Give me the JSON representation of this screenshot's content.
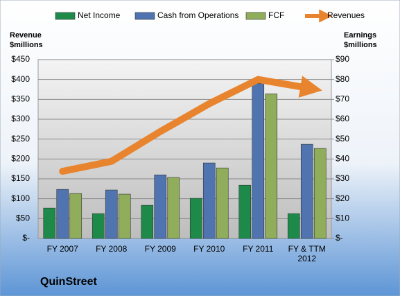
{
  "chart_data": {
    "type": "bar",
    "title": "QuinStreet",
    "y_label": "Revenue $millions",
    "y2_label": "Earnings $millions",
    "categories": [
      "FY 2007",
      "FY 2008",
      "FY 2009",
      "FY 2010",
      "FY 2011",
      "FY & TTM 2012"
    ],
    "series": [
      {
        "name": "Net Income",
        "color": "#1e8a4a",
        "axis": "y2",
        "type": "bar",
        "values": [
          15.3,
          12.5,
          16.7,
          20.2,
          26.8,
          12.5
        ]
      },
      {
        "name": "Cash from Operations",
        "color": "#4f74b0",
        "axis": "y2",
        "type": "bar",
        "values": [
          24.7,
          24.4,
          32,
          38,
          78,
          47.4
        ]
      },
      {
        "name": "FCF",
        "color": "#8fad5a",
        "axis": "y2",
        "type": "bar",
        "values": [
          22.6,
          22.3,
          30.7,
          35.5,
          72.8,
          45.3
        ]
      },
      {
        "name": "Revenues",
        "color": "#e8842e",
        "axis": "y",
        "type": "line",
        "values": [
          169,
          194,
          269,
          339,
          400,
          379
        ]
      }
    ],
    "ylim": [
      0,
      450
    ],
    "yticks": [
      {
        "value": 0,
        "label": "$-"
      },
      {
        "value": 50,
        "label": "$50"
      },
      {
        "value": 100,
        "label": "$100"
      },
      {
        "value": 150,
        "label": "$150"
      },
      {
        "value": 200,
        "label": "$200"
      },
      {
        "value": 250,
        "label": "$250"
      },
      {
        "value": 300,
        "label": "$300"
      },
      {
        "value": 350,
        "label": "$350"
      },
      {
        "value": 400,
        "label": "$400"
      },
      {
        "value": 450,
        "label": "$450"
      }
    ],
    "y2lim": [
      0,
      90
    ],
    "y2ticks": [
      {
        "value": 0,
        "label": "$-"
      },
      {
        "value": 10,
        "label": "$10"
      },
      {
        "value": 20,
        "label": "$20"
      },
      {
        "value": 30,
        "label": "$30"
      },
      {
        "value": 40,
        "label": "$40"
      },
      {
        "value": 50,
        "label": "$50"
      },
      {
        "value": 60,
        "label": "$60"
      },
      {
        "value": 70,
        "label": "$70"
      },
      {
        "value": 80,
        "label": "$80"
      },
      {
        "value": 90,
        "label": "$90"
      }
    ],
    "grid": true,
    "legend": "top"
  }
}
